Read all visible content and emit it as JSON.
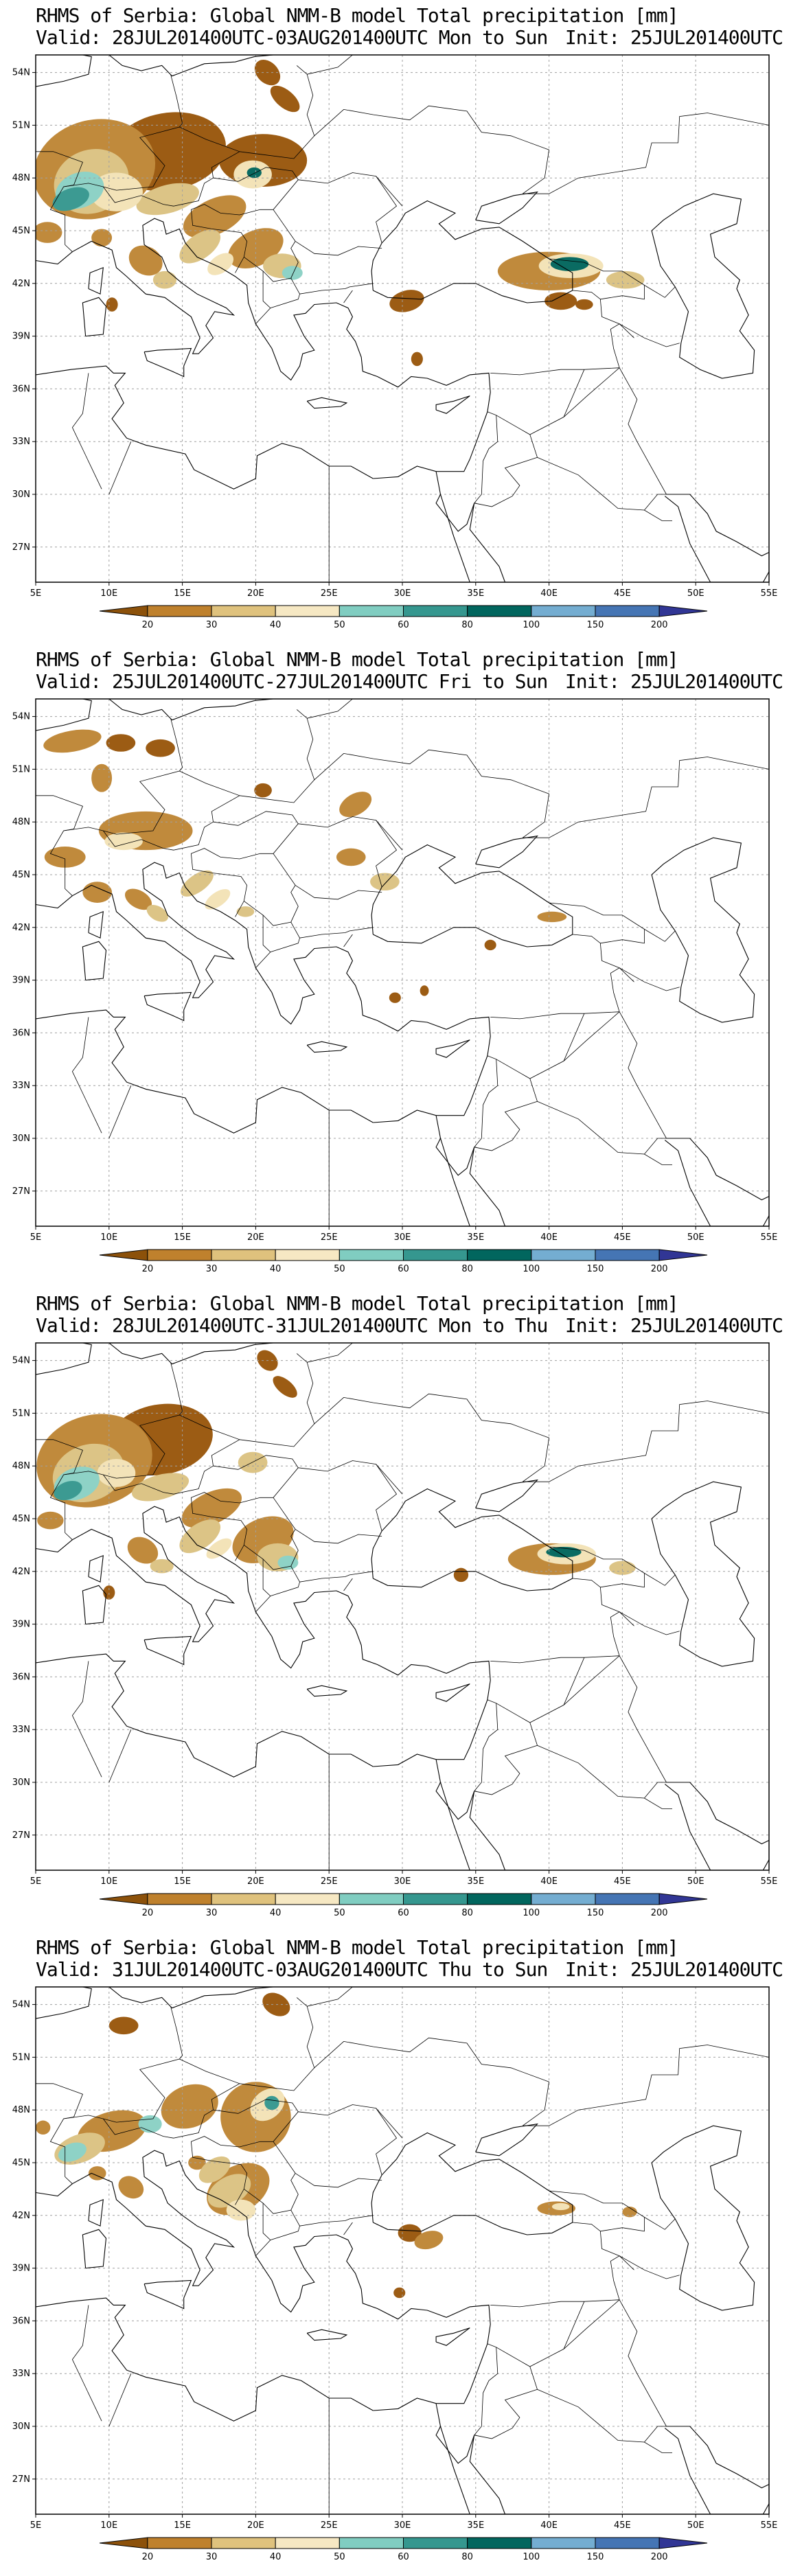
{
  "map_common": {
    "lon_ticks": [
      "5E",
      "10E",
      "15E",
      "20E",
      "25E",
      "30E",
      "35E",
      "40E",
      "45E",
      "50E",
      "55E"
    ],
    "lat_ticks": [
      "54N",
      "51N",
      "48N",
      "45N",
      "42N",
      "39N",
      "36N",
      "33N",
      "30N",
      "27N"
    ],
    "colorbar_labels": [
      "20",
      "30",
      "40",
      "50",
      "60",
      "80",
      "100",
      "150",
      "200"
    ],
    "colorbar_colors": [
      "#8c510a",
      "#bf812d",
      "#dfc27d",
      "#f6e8c3",
      "#80cdc1",
      "#35978f",
      "#01665e",
      "#74add1",
      "#4575b4",
      "#313695"
    ],
    "coastline_color": "#000000",
    "grid_color": "#a0a0a0"
  },
  "panels": [
    {
      "title": "RHMS of Serbia: Global NMM-B model Total precipitation [mm]",
      "valid": "Valid: 28JUL201400UTC-03AUG201400UTC Mon to Sun",
      "init": "Init: 25JUL201400UTC"
    },
    {
      "title": "RHMS of Serbia: Global NMM-B model Total precipitation [mm]",
      "valid": "Valid: 25JUL201400UTC-27JUL201400UTC Fri to Sun",
      "init": "Init: 25JUL201400UTC"
    },
    {
      "title": "RHMS of Serbia: Global NMM-B model Total precipitation [mm]",
      "valid": "Valid: 28JUL201400UTC-31JUL201400UTC Mon to Thu",
      "init": "Init: 25JUL201400UTC"
    },
    {
      "title": "RHMS of Serbia: Global NMM-B model Total precipitation [mm]",
      "valid": "Valid: 31JUL201400UTC-03AUG201400UTC Thu to Sun",
      "init": "Init: 25JUL201400UTC"
    }
  ]
}
